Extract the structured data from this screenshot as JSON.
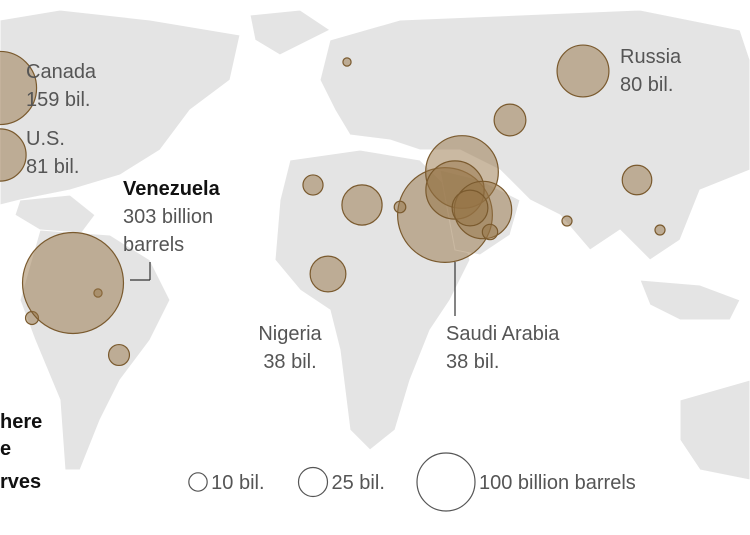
{
  "map": {
    "title_lines": [
      "here",
      "e",
      "rves"
    ],
    "bubbles": [
      {
        "name": "Canada",
        "value": 159,
        "label_lines": [
          "159 bil."
        ]
      },
      {
        "name": "U.S.",
        "value": 81,
        "label_lines": [
          "81 bil."
        ]
      },
      {
        "name": "Venezuela",
        "value": 303,
        "label_lines": [
          "303 billion",
          "barrels"
        ]
      },
      {
        "name": "Russia",
        "value": 80,
        "label_lines": [
          "80 bil."
        ]
      },
      {
        "name": "Nigeria",
        "value": 38,
        "label_lines": [
          "38 bil."
        ]
      },
      {
        "name": "Saudi Arabia",
        "value": 38,
        "label_lines": [
          "38 bil."
        ]
      }
    ],
    "other_values": [
      267,
      157,
      101,
      98,
      48,
      30,
      26,
      12,
      13,
      7,
      5,
      4,
      3,
      3,
      2,
      2
    ],
    "legend": [
      {
        "value": 10,
        "label": "10 bil."
      },
      {
        "value": 25,
        "label": "25 bil."
      },
      {
        "value": 100,
        "label": "100 billion barrels"
      }
    ]
  }
}
